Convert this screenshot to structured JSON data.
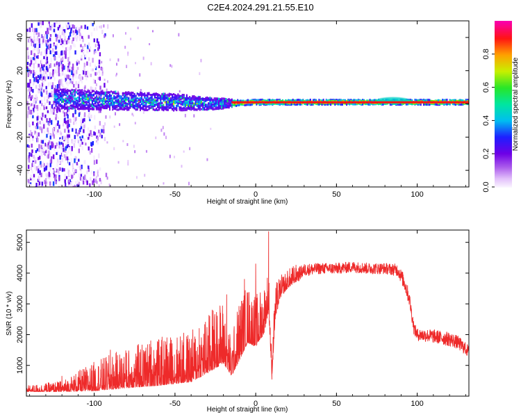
{
  "title": "C2E4.2024.291.21.55.E10",
  "colors": {
    "snr_line": "#ee2a2a",
    "axis": "#000000",
    "background": "#ffffff"
  },
  "chart_data": [
    {
      "type": "heatmap",
      "name": "spectrogram",
      "xlabel": "Height of straight line (km)",
      "ylabel": "Frequency (Hz)",
      "xlim": [
        -142,
        132
      ],
      "ylim": [
        -50,
        50
      ],
      "x_ticks": [
        -100,
        -50,
        0,
        50,
        100
      ],
      "x_tick_labels": [
        "-100",
        "-50",
        "0",
        "50",
        "100"
      ],
      "y_ticks": [
        -40,
        -20,
        0,
        20,
        40
      ],
      "y_tick_labels": [
        "-40",
        "-20",
        "0",
        "20",
        "40"
      ],
      "colorbar": {
        "label": "Normalized spectral amplitude",
        "range": [
          0,
          1
        ],
        "ticks": [
          0.0,
          0.2,
          0.4,
          0.6,
          0.8
        ],
        "tick_labels": [
          "0.0",
          "0.2",
          "0.4",
          "0.6",
          "0.8"
        ],
        "colormap": "rainbow (white-violet-blue-cyan-green-yellow-red-magenta)"
      },
      "features": {
        "diffuse_noise_region_x": [
          -142,
          -100
        ],
        "band_center_hz": [
          [
            -125,
            3
          ],
          [
            -90,
            2
          ],
          [
            -50,
            1
          ],
          [
            -25,
            0
          ],
          [
            0,
            1
          ],
          [
            50,
            1
          ],
          [
            100,
            1
          ],
          [
            132,
            1
          ]
        ],
        "band_halfwidth_hz": [
          [
            -125,
            6
          ],
          [
            -50,
            5
          ],
          [
            -20,
            3
          ],
          [
            -10,
            1.5
          ],
          [
            132,
            1.5
          ]
        ],
        "strong_red_band_x": [
          -15,
          132
        ],
        "wide_bump_x": [
          75,
          95
        ]
      }
    },
    {
      "type": "line",
      "name": "snr",
      "xlabel": "Height of straight line (km)",
      "ylabel": "SNR (10 * v/v)",
      "xlim": [
        -142,
        132
      ],
      "ylim": [
        0,
        5400
      ],
      "x_ticks": [
        -100,
        -50,
        0,
        50,
        100
      ],
      "x_tick_labels": [
        "-100",
        "-50",
        "0",
        "50",
        "100"
      ],
      "y_ticks": [
        1000,
        2000,
        3000,
        4000,
        5000
      ],
      "y_tick_labels": [
        "1000",
        "2000",
        "3000",
        "4000",
        "5000"
      ],
      "series": [
        {
          "envelope_x": [
            -142,
            -120,
            -100,
            -80,
            -60,
            -40,
            -30,
            -20,
            -15,
            -10,
            -5,
            0,
            5,
            8,
            10,
            12,
            15,
            20,
            25,
            30,
            40,
            50,
            60,
            70,
            80,
            88,
            92,
            95,
            98,
            100,
            110,
            120,
            125,
            132
          ],
          "envelope_mean": [
            200,
            250,
            450,
            650,
            800,
            950,
            1300,
            1700,
            1000,
            1800,
            2300,
            2100,
            2500,
            3200,
            800,
            2800,
            3400,
            3700,
            3900,
            4100,
            4150,
            4150,
            4200,
            4150,
            4150,
            4100,
            3700,
            3200,
            2200,
            2000,
            1950,
            1850,
            1750,
            1450
          ],
          "envelope_amplitude": [
            80,
            150,
            400,
            550,
            650,
            700,
            800,
            900,
            500,
            900,
            800,
            700,
            700,
            600,
            300,
            500,
            300,
            250,
            250,
            200,
            180,
            180,
            180,
            180,
            180,
            200,
            250,
            250,
            200,
            200,
            220,
            230,
            220,
            200
          ],
          "spikes": [
            [
              -120,
              650
            ],
            [
              -90,
              1500
            ],
            [
              -80,
              1400
            ],
            [
              -65,
              1800
            ],
            [
              -55,
              1900
            ],
            [
              -45,
              1650
            ],
            [
              -35,
              2200
            ],
            [
              -27,
              2800
            ],
            [
              -18,
              3300
            ],
            [
              -7,
              3800
            ],
            [
              0,
              4300
            ],
            [
              8,
              5350
            ],
            [
              10,
              550
            ]
          ]
        }
      ]
    }
  ]
}
